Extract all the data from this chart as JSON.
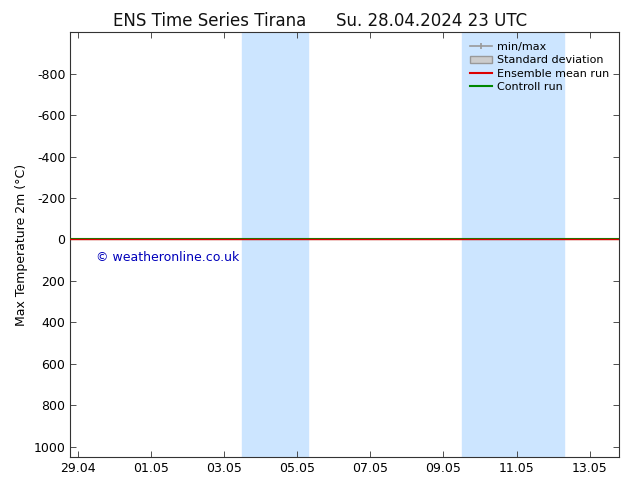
{
  "title": "ENS Time Series Tirana",
  "title2": "Su. 28.04.2024 23 UTC",
  "ylabel": "Max Temperature 2m (°C)",
  "ylim_bottom": -1000,
  "ylim_top": 1050,
  "yticks": [
    -800,
    -600,
    -400,
    -200,
    0,
    200,
    400,
    600,
    800,
    1000
  ],
  "xtick_labels": [
    "29.04",
    "01.05",
    "03.05",
    "05.05",
    "07.05",
    "09.05",
    "11.05",
    "13.05"
  ],
  "xtick_positions": [
    0,
    2,
    4,
    6,
    8,
    10,
    12,
    14
  ],
  "xlim": [
    -0.2,
    14.8
  ],
  "shade_regions": [
    {
      "xstart": 4.5,
      "xend": 6.3
    },
    {
      "xstart": 10.5,
      "xend": 13.3
    }
  ],
  "shade_color": "#cce5ff",
  "green_line_y": 0,
  "red_line_y": 0,
  "green_line_color": "#008800",
  "red_line_color": "#dd0000",
  "watermark": "© weatheronline.co.uk",
  "watermark_color": "#0000bb",
  "legend_labels": [
    "min/max",
    "Standard deviation",
    "Ensemble mean run",
    "Controll run"
  ],
  "legend_colors_line": [
    "#999999",
    "#bbbbbb",
    "#dd0000",
    "#008800"
  ],
  "background_color": "#ffffff",
  "plot_bg_color": "#ffffff",
  "border_color": "#333333",
  "font_size_title": 12,
  "font_size_axis": 9,
  "font_size_tick": 9,
  "font_size_legend": 8
}
